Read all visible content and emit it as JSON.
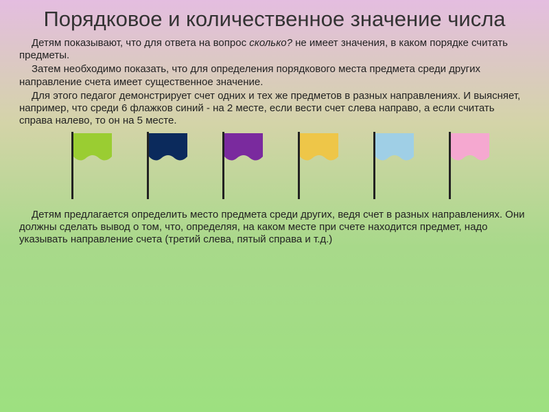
{
  "title": "Порядковое и количественное значение числа",
  "p1_a": "Детям показывают, что для ответа на вопрос ",
  "p1_italic": "сколько?",
  "p1_b": " не имеет значения, в каком порядке считать предметы.",
  "p2": "Затем необходимо показать, что для определения порядкового места предмета среди других направление счета имеет существенное значение.",
  "p3": "Для этого педагог  демонстрирует счет одних и тех же предметов в разных направлениях. И выясняет, например, что среди 6 флажков синий - на 2 месте, если вести счет слева направо, а если считать справа налево, то он на 5 месте.",
  "p4": "Детям предлагается определить место предмета среди других, ведя счет в разных направлениях. Они должны сделать вывод о том, что, определяя, на каком месте при счете находится предмет, надо указывать направление счета (третий слева, пятый справа и т.д.)",
  "flags": {
    "pole_color": "#222222",
    "pole_height": 98,
    "cloth_w": 56,
    "cloth_h": 40,
    "items": [
      {
        "fill": "#9acd32"
      },
      {
        "fill": "#0b2a5c"
      },
      {
        "fill": "#7a2a9e"
      },
      {
        "fill": "#eec648"
      },
      {
        "fill": "#9fcfe6"
      },
      {
        "fill": "#f5a8d0"
      }
    ]
  }
}
